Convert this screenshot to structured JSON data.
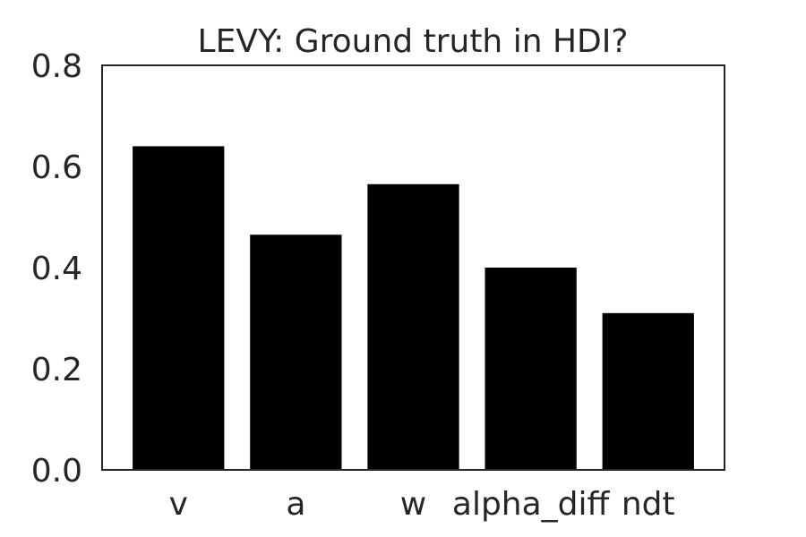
{
  "chart_data": {
    "type": "bar",
    "title": "LEVY: Ground truth in HDI?",
    "xlabel": "",
    "ylabel": "",
    "categories": [
      "v",
      "a",
      "w",
      "alpha_diff",
      "ndt"
    ],
    "values": [
      0.64,
      0.465,
      0.565,
      0.4,
      0.31
    ],
    "ylim": [
      0,
      0.8
    ],
    "yticks": [
      "0.0",
      "0.2",
      "0.4",
      "0.6",
      "0.8"
    ],
    "grid": false,
    "legend": "none",
    "bar_color": "#000000",
    "axis_color": "#262626"
  }
}
